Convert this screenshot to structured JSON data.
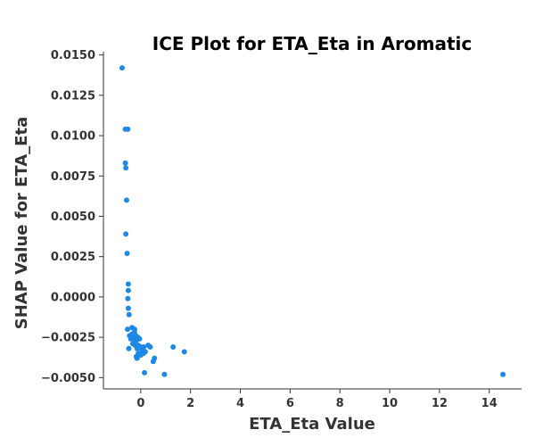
{
  "chart_data": {
    "type": "scatter",
    "title": "ICE Plot for ETA_Eta in Aromatic",
    "xlabel": "ETA_Eta Value",
    "ylabel": "SHAP Value for ETA_Eta",
    "xlim": [
      -1.5,
      15.3
    ],
    "ylim": [
      -0.0057,
      0.0152
    ],
    "xticks": [
      0,
      2,
      4,
      6,
      8,
      10,
      12,
      14
    ],
    "xtick_labels": [
      "0",
      "2",
      "4",
      "6",
      "8",
      "10",
      "12",
      "14"
    ],
    "yticks": [
      -0.005,
      -0.0025,
      0.0,
      0.0025,
      0.005,
      0.0075,
      0.01,
      0.0125,
      0.015
    ],
    "ytick_labels": [
      "−0.0050",
      "−0.0025",
      "0.0000",
      "0.0025",
      "0.0050",
      "0.0075",
      "0.0100",
      "0.0125",
      "0.0150"
    ],
    "grid": false,
    "color": "#1e88e5",
    "points": [
      {
        "x": -0.75,
        "y": 0.0142
      },
      {
        "x": -0.62,
        "y": 0.0104
      },
      {
        "x": -0.52,
        "y": 0.0104
      },
      {
        "x": -0.62,
        "y": 0.0083
      },
      {
        "x": -0.6,
        "y": 0.008
      },
      {
        "x": -0.57,
        "y": 0.006
      },
      {
        "x": -0.6,
        "y": 0.0039
      },
      {
        "x": -0.55,
        "y": 0.0027
      },
      {
        "x": -0.5,
        "y": 0.0008
      },
      {
        "x": -0.5,
        "y": 0.0004
      },
      {
        "x": -0.52,
        "y": -0.0001
      },
      {
        "x": -0.5,
        "y": -0.0007
      },
      {
        "x": -0.47,
        "y": -0.0011
      },
      {
        "x": -0.53,
        "y": -0.002
      },
      {
        "x": -0.35,
        "y": -0.0019
      },
      {
        "x": -0.25,
        "y": -0.002
      },
      {
        "x": -0.45,
        "y": -0.0024
      },
      {
        "x": -0.35,
        "y": -0.0023
      },
      {
        "x": -0.25,
        "y": -0.0022
      },
      {
        "x": -0.2,
        "y": -0.0024
      },
      {
        "x": -0.12,
        "y": -0.0025
      },
      {
        "x": -0.4,
        "y": -0.0026
      },
      {
        "x": -0.28,
        "y": -0.0026
      },
      {
        "x": -0.18,
        "y": -0.0027
      },
      {
        "x": -0.05,
        "y": -0.0026
      },
      {
        "x": -0.32,
        "y": -0.0029
      },
      {
        "x": -0.22,
        "y": -0.003
      },
      {
        "x": -0.1,
        "y": -0.003
      },
      {
        "x": 0.0,
        "y": -0.0031
      },
      {
        "x": 0.12,
        "y": -0.0031
      },
      {
        "x": 0.3,
        "y": -0.003
      },
      {
        "x": 0.38,
        "y": -0.0031
      },
      {
        "x": -0.48,
        "y": -0.0032
      },
      {
        "x": -0.15,
        "y": -0.0032
      },
      {
        "x": 0.05,
        "y": -0.0033
      },
      {
        "x": 0.18,
        "y": -0.0034
      },
      {
        "x": -0.1,
        "y": -0.0035
      },
      {
        "x": 0.0,
        "y": -0.0036
      },
      {
        "x": 0.1,
        "y": -0.0035
      },
      {
        "x": -0.18,
        "y": -0.0037
      },
      {
        "x": -0.15,
        "y": -0.0038
      },
      {
        "x": 0.55,
        "y": -0.0038
      },
      {
        "x": 0.5,
        "y": -0.004
      },
      {
        "x": 0.15,
        "y": -0.0047
      },
      {
        "x": 0.95,
        "y": -0.0048
      },
      {
        "x": 1.3,
        "y": -0.0031
      },
      {
        "x": 1.75,
        "y": -0.0034
      },
      {
        "x": 14.55,
        "y": -0.0048
      }
    ]
  }
}
